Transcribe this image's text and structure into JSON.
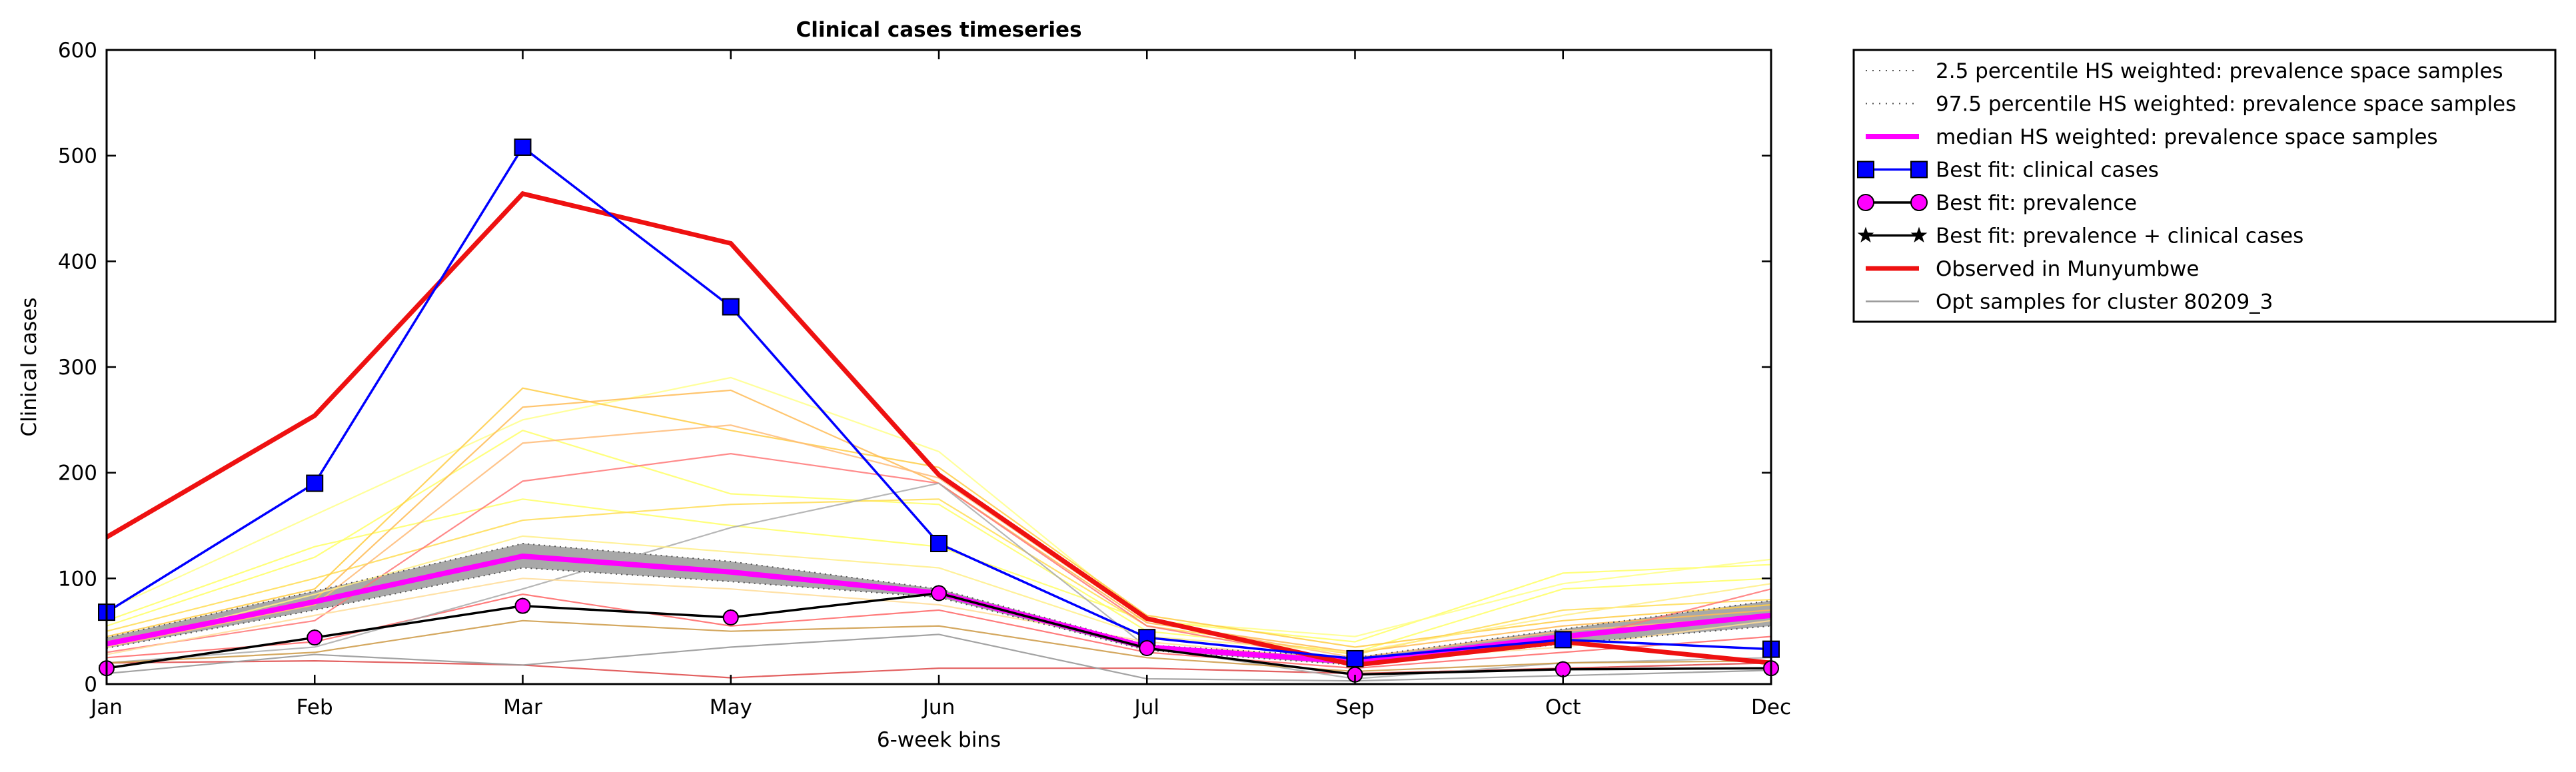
{
  "chart_data": {
    "type": "line",
    "title": "Clinical cases timeseries",
    "xlabel": "6-week bins",
    "ylabel": "Clinical cases",
    "categories": [
      "Jan",
      "Feb",
      "Mar",
      "May",
      "Jun",
      "Jul",
      "Sep",
      "Oct",
      "Dec"
    ],
    "ylim": [
      0,
      600
    ],
    "yticks": [
      0,
      100,
      200,
      300,
      400,
      500,
      600
    ],
    "grid": false,
    "legend_position": "outside-right",
    "band": {
      "lower": [
        34,
        70,
        110,
        97,
        82,
        32,
        18,
        38,
        55
      ],
      "upper": [
        44,
        88,
        133,
        116,
        90,
        37,
        25,
        52,
        79
      ]
    },
    "series": [
      {
        "name": "2.5 percentile HS weighted: prevalence space samples",
        "color": "#555555",
        "style": "dotted",
        "values": [
          34,
          70,
          110,
          97,
          82,
          32,
          18,
          38,
          55
        ]
      },
      {
        "name": "97.5 percentile HS weighted: prevalence space samples",
        "color": "#555555",
        "style": "dotted",
        "values": [
          44,
          88,
          133,
          116,
          90,
          37,
          25,
          52,
          79
        ]
      },
      {
        "name": "median HS weighted: prevalence space samples",
        "color": "#ff00ff",
        "style": "thick",
        "values": [
          38,
          78,
          121,
          106,
          86,
          35,
          21,
          45,
          65
        ]
      },
      {
        "name": "Best fit: clinical cases",
        "color": "#0000ff",
        "style": "square",
        "values": [
          68,
          190,
          508,
          357,
          133,
          44,
          24,
          42,
          33
        ]
      },
      {
        "name": "Best fit: prevalence",
        "color": "#ff00ff",
        "style": "circle",
        "values": [
          15,
          44,
          74,
          63,
          86,
          34,
          9,
          14,
          15
        ]
      },
      {
        "name": "Best fit: prevalence + clinical cases",
        "color": "#000000",
        "style": "star",
        "values": [
          15,
          44,
          74,
          63,
          86,
          34,
          9,
          14,
          15
        ]
      },
      {
        "name": "Observed in Munyumbwe",
        "color": "#ee1111",
        "style": "observed",
        "values": [
          139,
          254,
          464,
          417,
          198,
          62,
          18,
          40,
          20
        ]
      },
      {
        "name": "Opt samples for cluster 80209_3",
        "color": "#999999",
        "style": "thin",
        "values": [
          10,
          28,
          18,
          35,
          47,
          5,
          3,
          8,
          13
        ]
      }
    ],
    "opt_samples": [
      {
        "color": "#ffff66",
        "values": [
          60,
          130,
          175,
          150,
          130,
          60,
          40,
          105,
          113
        ]
      },
      {
        "color": "#ffff88",
        "values": [
          70,
          160,
          250,
          290,
          220,
          60,
          45,
          95,
          118
        ]
      },
      {
        "color": "#ffff66",
        "values": [
          55,
          120,
          240,
          180,
          170,
          50,
          30,
          90,
          100
        ]
      },
      {
        "color": "#ffdd55",
        "values": [
          50,
          100,
          155,
          170,
          175,
          55,
          28,
          70,
          80
        ]
      },
      {
        "color": "#ffcc44",
        "values": [
          45,
          90,
          280,
          240,
          205,
          65,
          35,
          60,
          75
        ]
      },
      {
        "color": "#ffbb55",
        "values": [
          40,
          80,
          262,
          278,
          190,
          58,
          30,
          55,
          70
        ]
      },
      {
        "color": "#ffbb77",
        "values": [
          35,
          75,
          228,
          245,
          195,
          60,
          25,
          50,
          65
        ]
      },
      {
        "color": "#ff7777",
        "values": [
          30,
          60,
          192,
          218,
          190,
          55,
          20,
          40,
          90
        ]
      },
      {
        "color": "#ff6666",
        "values": [
          25,
          40,
          85,
          55,
          70,
          30,
          15,
          30,
          45
        ]
      },
      {
        "color": "#dd4444",
        "values": [
          20,
          22,
          18,
          6,
          15,
          15,
          10,
          15,
          20
        ]
      },
      {
        "color": "#aaaaaa",
        "values": [
          20,
          35,
          90,
          148,
          190,
          35,
          5,
          20,
          25
        ]
      },
      {
        "color": "#cc9944",
        "values": [
          20,
          30,
          60,
          50,
          55,
          25,
          12,
          20,
          22
        ]
      },
      {
        "color": "#ffee88",
        "values": [
          35,
          85,
          140,
          125,
          110,
          45,
          30,
          65,
          95
        ]
      },
      {
        "color": "#ffdd99",
        "values": [
          28,
          65,
          100,
          90,
          75,
          40,
          22,
          35,
          60
        ]
      }
    ]
  }
}
